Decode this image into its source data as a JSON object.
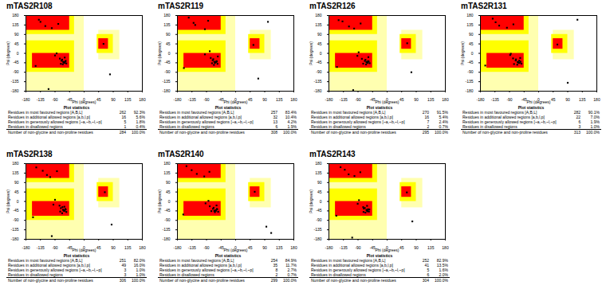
{
  "chart_data": [
    {
      "type": "scatter",
      "title": "mTAS2R108",
      "x_label": "Phi (degrees)",
      "y_label": "Psi (degrees)",
      "xlim": [
        -180,
        180
      ],
      "ylim": [
        -180,
        180
      ],
      "xticks": [
        -180,
        -135,
        -90,
        -45,
        0,
        45,
        90,
        135,
        180
      ],
      "yticks": [
        -180,
        -135,
        -90,
        -45,
        0,
        45,
        90,
        135,
        180
      ],
      "grid": false,
      "color": "#000000",
      "marker": "square",
      "regions": [
        [
          -180,
          0,
          -180,
          180,
          "#ffffb0"
        ],
        [
          45,
          110,
          -30,
          110,
          "#ffffb0"
        ],
        [
          -180,
          -30,
          90,
          180,
          "#ffff00"
        ],
        [
          -180,
          -30,
          -90,
          60,
          "#ffff00"
        ],
        [
          40,
          90,
          0,
          90,
          "#ffff00"
        ],
        [
          -180,
          -45,
          110,
          180,
          "#ff0000"
        ],
        [
          -160,
          -45,
          -70,
          0,
          "#ff0000"
        ],
        [
          45,
          75,
          20,
          70,
          "#ff0000"
        ]
      ],
      "x": [
        -65,
        -60,
        -58,
        -70,
        -62,
        -55,
        -68,
        -72,
        -63,
        -57,
        -75,
        -66,
        -120,
        -135,
        -100,
        -80,
        -90,
        -140,
        -60,
        60,
        -150,
        -85,
        -110,
        80
      ],
      "y": [
        -40,
        -45,
        -38,
        -35,
        -42,
        -48,
        -30,
        -50,
        -44,
        -36,
        -25,
        -52,
        130,
        150,
        120,
        140,
        -10,
        160,
        -20,
        45,
        -60,
        0,
        -170,
        -100
      ],
      "statistics": {
        "title": "Plot statistics",
        "rows": [
          [
            "Residues in most favoured regions [A,B,L]",
            262,
            "92.3%"
          ],
          [
            "Residues in additional allowed regions [a,b,l,p]",
            16,
            "5.6%"
          ],
          [
            "Residues in generously allowed regions [~a,~b,~l,~p]",
            5,
            "1.8%"
          ],
          [
            "Residues in disallowed regions",
            1,
            "0.4%"
          ]
        ],
        "total": [
          "Number of non-glycine and non-proline residues",
          284,
          "100.0%"
        ]
      }
    },
    {
      "type": "scatter",
      "title": "mTAS2R119",
      "x_label": "Phi (degrees)",
      "y_label": "Psi (degrees)",
      "xlim": [
        -180,
        180
      ],
      "ylim": [
        -180,
        180
      ],
      "xticks": [
        -180,
        -135,
        -90,
        -45,
        0,
        45,
        90,
        135,
        180
      ],
      "yticks": [
        -180,
        -135,
        -90,
        -45,
        0,
        45,
        90,
        135,
        180
      ],
      "grid": false,
      "color": "#000000",
      "marker": "square",
      "regions": [
        [
          -180,
          0,
          -180,
          180,
          "#ffffb0"
        ],
        [
          45,
          110,
          -30,
          110,
          "#ffffb0"
        ],
        [
          -180,
          -30,
          90,
          180,
          "#ffff00"
        ],
        [
          -180,
          -30,
          -90,
          60,
          "#ffff00"
        ],
        [
          40,
          90,
          0,
          90,
          "#ffff00"
        ],
        [
          -180,
          -45,
          110,
          180,
          "#ff0000"
        ],
        [
          -160,
          -45,
          -70,
          0,
          "#ff0000"
        ],
        [
          45,
          75,
          20,
          70,
          "#ff0000"
        ]
      ],
      "x": [
        -62,
        -66,
        -59,
        -71,
        -64,
        -56,
        -69,
        -73,
        -61,
        -58,
        -77,
        -67,
        -125,
        -130,
        -95,
        -85,
        -95,
        -145,
        -55,
        55,
        -160,
        -80,
        70,
        100
      ],
      "y": [
        -42,
        -40,
        -37,
        -33,
        -46,
        -50,
        -28,
        -47,
        -41,
        -39,
        -22,
        -55,
        135,
        145,
        115,
        155,
        -5,
        170,
        -15,
        40,
        -70,
        10,
        -120,
        150
      ],
      "statistics": {
        "title": "Plot statistics",
        "rows": [
          [
            "Residues in most favoured regions [A,B,L]",
            257,
            "83.4%"
          ],
          [
            "Residues in additional allowed regions [a,b,l,p]",
            32,
            "10.4%"
          ],
          [
            "Residues in generously allowed regions [~a,~b,~l,~p]",
            13,
            "4.2%"
          ],
          [
            "Residues in disallowed regions",
            6,
            "1.9%"
          ]
        ],
        "total": [
          "Number of non-glycine and non-proline residues",
          308,
          "100.0%"
        ]
      }
    },
    {
      "type": "scatter",
      "title": "mTAS2R126",
      "x_label": "Phi (degrees)",
      "y_label": "Psi (degrees)",
      "xlim": [
        -180,
        180
      ],
      "ylim": [
        -180,
        180
      ],
      "xticks": [
        -180,
        -135,
        -90,
        -45,
        0,
        45,
        90,
        135,
        180
      ],
      "yticks": [
        -180,
        -135,
        -90,
        -45,
        0,
        45,
        90,
        135,
        180
      ],
      "grid": false,
      "color": "#000000",
      "marker": "square",
      "regions": [
        [
          -180,
          0,
          -180,
          180,
          "#ffffb0"
        ],
        [
          45,
          110,
          -30,
          110,
          "#ffffb0"
        ],
        [
          -180,
          -30,
          90,
          180,
          "#ffff00"
        ],
        [
          -180,
          -30,
          -90,
          60,
          "#ffff00"
        ],
        [
          40,
          90,
          0,
          90,
          "#ffff00"
        ],
        [
          -180,
          -45,
          110,
          180,
          "#ff0000"
        ],
        [
          -160,
          -45,
          -70,
          0,
          "#ff0000"
        ],
        [
          45,
          75,
          20,
          70,
          "#ff0000"
        ]
      ],
      "x": [
        -64,
        -61,
        -57,
        -69,
        -63,
        -54,
        -67,
        -74,
        -60,
        -59,
        -78,
        -65,
        -118,
        -138,
        -102,
        -82,
        -92,
        -150,
        -58,
        62,
        -155,
        -88,
        -105,
        75
      ],
      "y": [
        -41,
        -44,
        -39,
        -36,
        -43,
        -47,
        -31,
        -49,
        -45,
        -37,
        -26,
        -53,
        128,
        152,
        118,
        142,
        -12,
        158,
        -18,
        48,
        -65,
        5,
        -175,
        -90
      ],
      "statistics": {
        "title": "Plot statistics",
        "rows": [
          [
            "Residues in most favoured regions [A,B,L]",
            270,
            "91.5%"
          ],
          [
            "Residues in additional allowed regions [a,b,l,p]",
            16,
            "5.4%"
          ],
          [
            "Residues in generously allowed regions [~a,~b,~l,~p]",
            7,
            "2.4%"
          ],
          [
            "Residues in disallowed regions",
            2,
            "0.7%"
          ]
        ],
        "total": [
          "Number of non-glycine and non-proline residues",
          295,
          "100.0%"
        ]
      }
    },
    {
      "type": "scatter",
      "title": "mTAS2R131",
      "x_label": "Phi (degrees)",
      "y_label": "Psi (degrees)",
      "xlim": [
        -180,
        180
      ],
      "ylim": [
        -180,
        180
      ],
      "xticks": [
        -180,
        -135,
        -90,
        -45,
        0,
        45,
        90,
        135,
        180
      ],
      "yticks": [
        -180,
        -135,
        -90,
        -45,
        0,
        45,
        90,
        135,
        180
      ],
      "grid": false,
      "color": "#000000",
      "marker": "square",
      "regions": [
        [
          -180,
          0,
          -180,
          180,
          "#ffffb0"
        ],
        [
          45,
          110,
          -30,
          110,
          "#ffffb0"
        ],
        [
          -180,
          -30,
          90,
          180,
          "#ffff00"
        ],
        [
          -180,
          -30,
          -90,
          60,
          "#ffff00"
        ],
        [
          40,
          90,
          0,
          90,
          "#ffff00"
        ],
        [
          -180,
          -45,
          110,
          180,
          "#ff0000"
        ],
        [
          -160,
          -45,
          -70,
          0,
          "#ff0000"
        ],
        [
          45,
          75,
          20,
          70,
          "#ff0000"
        ]
      ],
      "x": [
        -63,
        -59,
        -56,
        -71,
        -65,
        -53,
        -70,
        -76,
        -62,
        -60,
        -79,
        -66,
        -122,
        -133,
        -98,
        -78,
        -88,
        -142,
        -57,
        58,
        -165,
        -86,
        90,
        120
      ],
      "y": [
        -43,
        -46,
        -40,
        -34,
        -41,
        -49,
        -29,
        -51,
        -44,
        -35,
        -24,
        -54,
        132,
        148,
        122,
        138,
        -8,
        165,
        -22,
        42,
        -58,
        -2,
        -140,
        160
      ],
      "statistics": {
        "title": "Plot statistics",
        "rows": [
          [
            "Residues in most favoured regions [A,B,L]",
            282,
            "90.1%"
          ],
          [
            "Residues in additional allowed regions [a,b,l,p]",
            22,
            "7.0%"
          ],
          [
            "Residues in generously allowed regions [~a,~b,~l,~p]",
            6,
            "1.9%"
          ],
          [
            "Residues in disallowed regions",
            3,
            "1.0%"
          ]
        ],
        "total": [
          "Number of non-glycine and non-proline residues",
          313,
          "100.0%"
        ]
      }
    },
    {
      "type": "scatter",
      "title": "mTAS2R138",
      "x_label": "Phi (degrees)",
      "y_label": "Psi (degrees)",
      "xlim": [
        -180,
        180
      ],
      "ylim": [
        -180,
        180
      ],
      "xticks": [
        -180,
        -135,
        -90,
        -45,
        0,
        45,
        90,
        135,
        180
      ],
      "yticks": [
        -180,
        -135,
        -90,
        -45,
        0,
        45,
        90,
        135,
        180
      ],
      "grid": false,
      "color": "#000000",
      "marker": "square",
      "regions": [
        [
          -180,
          0,
          -180,
          180,
          "#ffffb0"
        ],
        [
          45,
          110,
          -30,
          110,
          "#ffffb0"
        ],
        [
          -180,
          -30,
          90,
          180,
          "#ffff00"
        ],
        [
          -180,
          -30,
          -90,
          60,
          "#ffff00"
        ],
        [
          40,
          90,
          0,
          90,
          "#ffff00"
        ],
        [
          -180,
          -45,
          110,
          180,
          "#ff0000"
        ],
        [
          -160,
          -45,
          -70,
          0,
          "#ff0000"
        ],
        [
          45,
          75,
          20,
          70,
          "#ff0000"
        ]
      ],
      "x": [
        -65,
        -62,
        -58,
        -72,
        -60,
        -55,
        -67,
        -74,
        -64,
        -57,
        -76,
        -68,
        -115,
        -128,
        -105,
        -84,
        -95,
        -148,
        -61,
        64,
        -158,
        -90,
        -100,
        85
      ],
      "y": [
        -39,
        -45,
        -36,
        -32,
        -44,
        -50,
        -27,
        -48,
        -42,
        -38,
        -20,
        -56,
        126,
        146,
        116,
        144,
        -15,
        162,
        -25,
        44,
        -75,
        8,
        -165,
        -110
      ],
      "statistics": {
        "title": "Plot statistics",
        "rows": [
          [
            "Residues in most favoured regions [A,B,L]",
            251,
            "82.0%"
          ],
          [
            "Residues in additional allowed regions [a,b,l,p]",
            49,
            "16.0%"
          ],
          [
            "Residues in generously allowed regions [~a,~b,~l,~p]",
            3,
            "1.0%"
          ],
          [
            "Residues in disallowed regions",
            3,
            "1.0%"
          ]
        ],
        "total": [
          "Number of non-glycine and non-proline residues",
          306,
          "100.0%"
        ]
      }
    },
    {
      "type": "scatter",
      "title": "mTAS2R140",
      "x_label": "Phi (degrees)",
      "y_label": "Psi (degrees)",
      "xlim": [
        -180,
        180
      ],
      "ylim": [
        -180,
        180
      ],
      "xticks": [
        -180,
        -135,
        -90,
        -45,
        0,
        45,
        90,
        135,
        180
      ],
      "yticks": [
        -180,
        -135,
        -90,
        -45,
        0,
        45,
        90,
        135,
        180
      ],
      "grid": false,
      "color": "#000000",
      "marker": "square",
      "regions": [
        [
          -180,
          0,
          -180,
          180,
          "#ffffb0"
        ],
        [
          45,
          110,
          -30,
          110,
          "#ffffb0"
        ],
        [
          -180,
          -30,
          90,
          180,
          "#ffff00"
        ],
        [
          -180,
          -30,
          -90,
          60,
          "#ffff00"
        ],
        [
          40,
          90,
          0,
          90,
          "#ffff00"
        ],
        [
          -180,
          -45,
          110,
          180,
          "#ff0000"
        ],
        [
          -160,
          -45,
          -70,
          0,
          "#ff0000"
        ],
        [
          45,
          75,
          20,
          70,
          "#ff0000"
        ]
      ],
      "x": [
        -61,
        -63,
        -57,
        -70,
        -66,
        -54,
        -68,
        -75,
        -62,
        -58,
        -80,
        -64,
        -120,
        -136,
        -97,
        -81,
        -93,
        -152,
        -59,
        59,
        -162,
        -84,
        110,
        95
      ],
      "y": [
        -44,
        -42,
        -37,
        -35,
        -45,
        -49,
        -30,
        -46,
        -43,
        -36,
        -23,
        -51,
        131,
        149,
        119,
        141,
        -9,
        168,
        -19,
        46,
        -62,
        3,
        -150,
        -120
      ],
      "statistics": {
        "title": "Plot statistics",
        "rows": [
          [
            "Residues in most favoured regions [A,B,L]",
            254,
            "84.9%"
          ],
          [
            "Residues in additional allowed regions [a,b,l,p]",
            35,
            "11.7%"
          ],
          [
            "Residues in generously allowed regions [~a,~b,~l,~p]",
            8,
            "2.7%"
          ],
          [
            "Residues in disallowed regions",
            2,
            "0.7%"
          ]
        ],
        "total": [
          "Number of non-glycine and non-proline residues",
          299,
          "100.0%"
        ]
      }
    },
    {
      "type": "scatter",
      "title": "mTAS2R143",
      "x_label": "Phi (degrees)",
      "y_label": "Psi (degrees)",
      "xlim": [
        -180,
        180
      ],
      "ylim": [
        -180,
        180
      ],
      "xticks": [
        -180,
        -135,
        -90,
        -45,
        0,
        45,
        90,
        135,
        180
      ],
      "yticks": [
        -180,
        -135,
        -90,
        -45,
        0,
        45,
        90,
        135,
        180
      ],
      "grid": false,
      "color": "#000000",
      "marker": "square",
      "regions": [
        [
          -180,
          0,
          -180,
          180,
          "#ffffb0"
        ],
        [
          45,
          110,
          -30,
          110,
          "#ffffb0"
        ],
        [
          -180,
          -30,
          90,
          180,
          "#ffff00"
        ],
        [
          -180,
          -30,
          -90,
          60,
          "#ffff00"
        ],
        [
          40,
          90,
          0,
          90,
          "#ffff00"
        ],
        [
          -180,
          -45,
          110,
          180,
          "#ff0000"
        ],
        [
          -160,
          -45,
          -70,
          0,
          "#ff0000"
        ],
        [
          45,
          75,
          20,
          70,
          "#ff0000"
        ]
      ],
      "x": [
        -64,
        -60,
        -55,
        -72,
        -63,
        -56,
        -69,
        -73,
        -61,
        -59,
        -74,
        -67,
        -119,
        -131,
        -101,
        -83,
        -91,
        -144,
        -62,
        61,
        -157,
        -87,
        -108,
        78
      ],
      "y": [
        -40,
        -47,
        -38,
        -34,
        -44,
        -48,
        -31,
        -50,
        -42,
        -37,
        -27,
        -53,
        129,
        151,
        121,
        139,
        -11,
        163,
        -21,
        43,
        -68,
        6,
        -172,
        -95
      ],
      "statistics": {
        "title": "Plot statistics",
        "rows": [
          [
            "Residues in most favoured regions [A,B,L]",
            252,
            "82.9%"
          ],
          [
            "Residues in additional allowed regions [a,b,l,p]",
            41,
            "13.5%"
          ],
          [
            "Residues in generously allowed regions [~a,~b,~l,~p]",
            5,
            "1.6%"
          ],
          [
            "Residues in disallowed regions",
            6,
            "2.0%"
          ]
        ],
        "total": [
          "Number of non-glycine and non-proline residues",
          304,
          "100.0%"
        ]
      }
    }
  ]
}
